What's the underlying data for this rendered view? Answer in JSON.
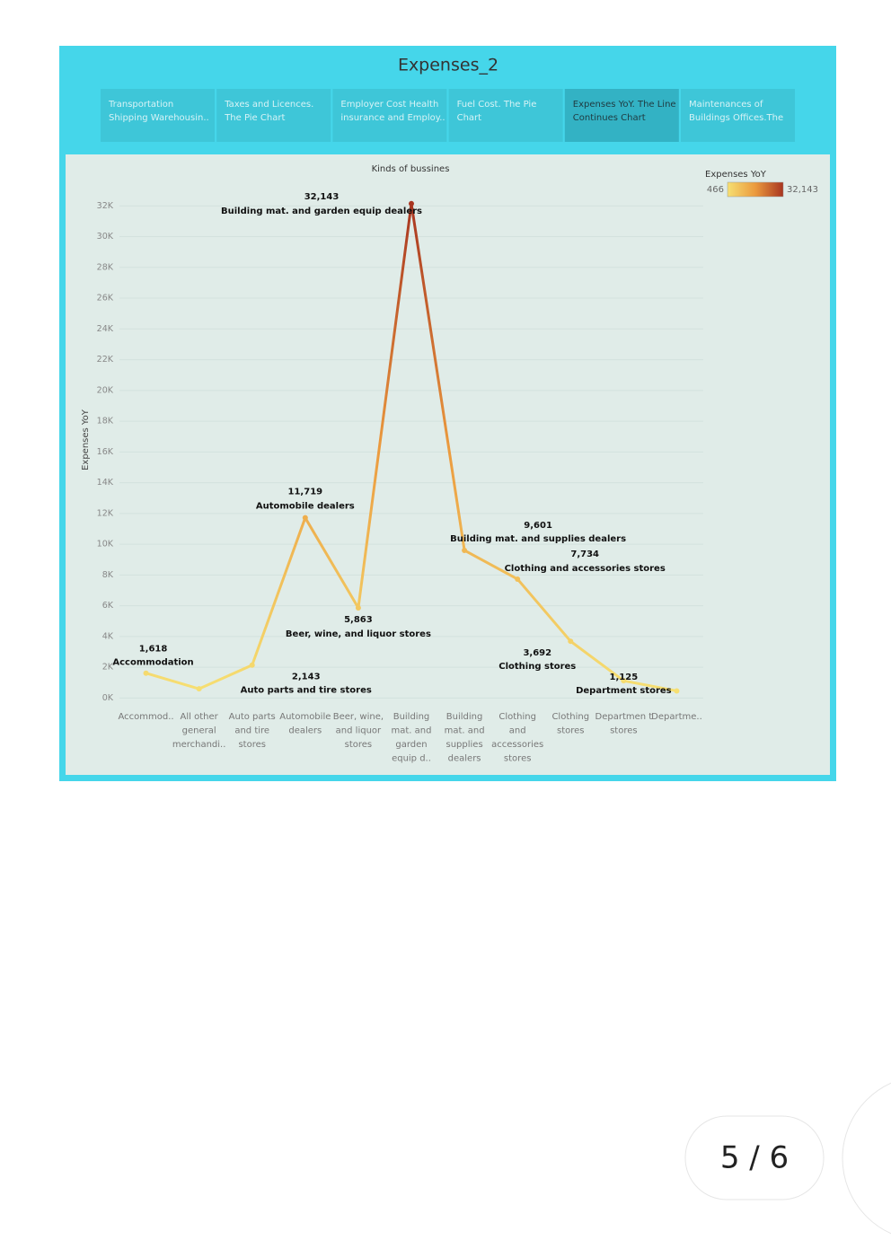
{
  "dashboard": {
    "title": "Expenses_2",
    "tabs": [
      {
        "label": "Transportation Shipping Warehousin..",
        "selected": false
      },
      {
        "label": "Taxes and Licences. The Pie Chart",
        "selected": false
      },
      {
        "label": "Employer Cost Health insurance and Employ..",
        "selected": false
      },
      {
        "label": "Fuel Cost. The Pie Chart",
        "selected": false
      },
      {
        "label": "Expenses YoY. The Line Continues Chart",
        "selected": true
      },
      {
        "label": "Maintenances of Buildings Offices.The ..",
        "selected": false
      }
    ]
  },
  "chart_data": {
    "type": "line",
    "title": "Kinds of bussines",
    "y_label": "Expenses YoY",
    "categories": [
      "Accommod..",
      "All other general merchandi..",
      "Auto parts and tire stores",
      "Automobile dealers",
      "Beer, wine, and liquor stores",
      "Building mat. and garden equip d..",
      "Building mat. and supplies dealers",
      "Clothing and accessories stores",
      "Clothing stores",
      "Departmen t stores",
      "Departme.."
    ],
    "series": [
      {
        "name": "Expenses YoY",
        "values": [
          1618,
          600,
          2143,
          11719,
          5863,
          32143,
          9601,
          7734,
          3692,
          1125,
          466
        ],
        "value_labels": [
          "1,618",
          null,
          "2,143",
          "11,719",
          "5,863",
          "32,143",
          "9,601",
          "7,734",
          "3,692",
          "1,125",
          null
        ],
        "point_labels": [
          "Accommodation",
          null,
          "Auto parts and tire stores",
          "Automobile dealers",
          "Beer, wine, and liquor stores",
          "Building mat. and garden equip dealers",
          "Building mat. and supplies dealers",
          "Clothing and accessories stores",
          "Clothing stores",
          "Department stores",
          null
        ]
      }
    ],
    "ylim": [
      -500,
      34000
    ],
    "yticks": [
      {
        "value": 0,
        "label": "0K"
      },
      {
        "value": 2000,
        "label": "2K"
      },
      {
        "value": 4000,
        "label": "4K"
      },
      {
        "value": 6000,
        "label": "6K"
      },
      {
        "value": 8000,
        "label": "8K"
      },
      {
        "value": 10000,
        "label": "10K"
      },
      {
        "value": 12000,
        "label": "12K"
      },
      {
        "value": 14000,
        "label": "14K"
      },
      {
        "value": 16000,
        "label": "16K"
      },
      {
        "value": 18000,
        "label": "18K"
      },
      {
        "value": 20000,
        "label": "20K"
      },
      {
        "value": 22000,
        "label": "22K"
      },
      {
        "value": 24000,
        "label": "24K"
      },
      {
        "value": 26000,
        "label": "26K"
      },
      {
        "value": 28000,
        "label": "28K"
      },
      {
        "value": 30000,
        "label": "30K"
      },
      {
        "value": 32000,
        "label": "32K"
      }
    ],
    "grid": true,
    "color_legend": {
      "title": "Expenses YoY",
      "min": 466,
      "max": {
        "value": 32143,
        "label": "32,143"
      },
      "colors": [
        "#f6df72",
        "#eb9a3e",
        "#a83520"
      ]
    }
  },
  "pager": "5 / 6"
}
